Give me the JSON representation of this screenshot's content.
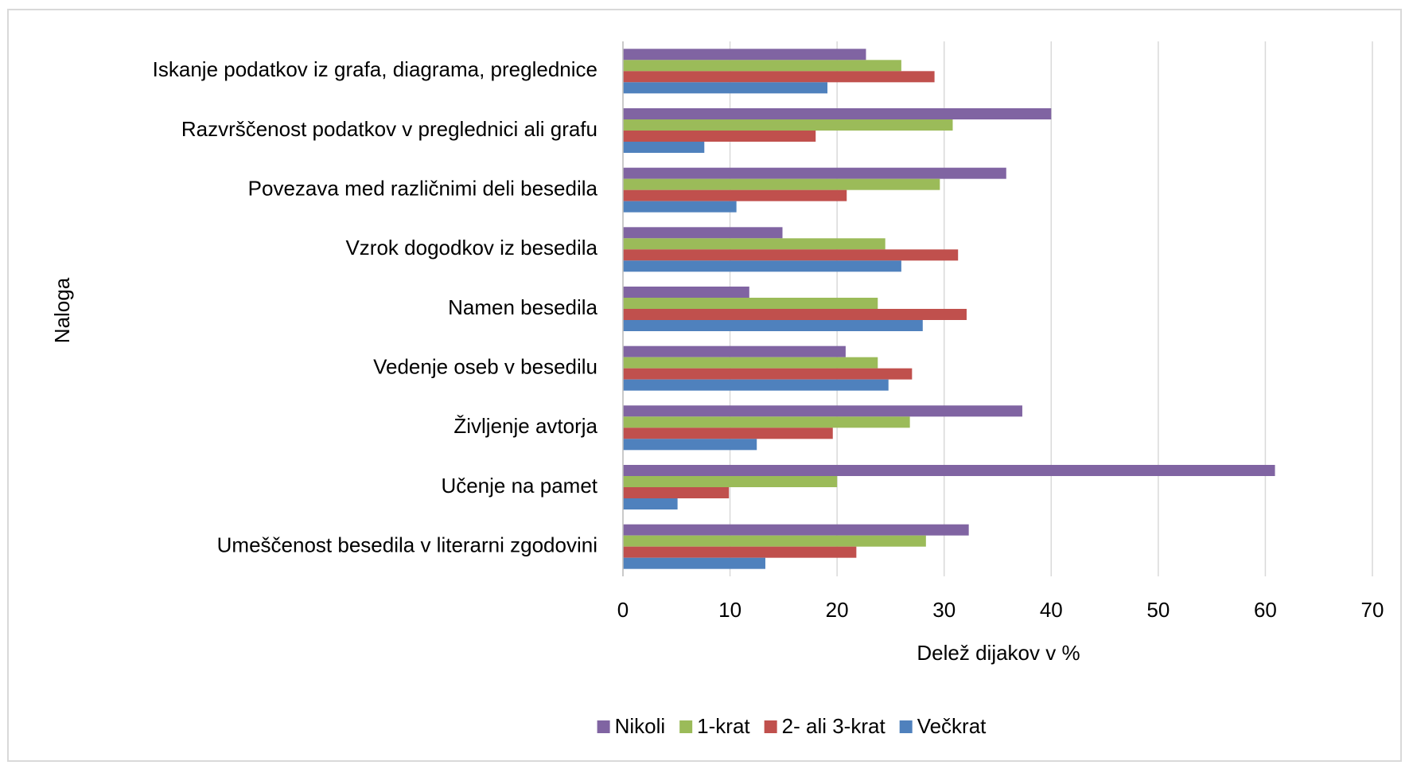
{
  "chart_data": {
    "type": "bar",
    "orientation": "horizontal",
    "x_label": "Delež dijakov v %",
    "y_label": "Naloga",
    "categories": [
      "Iskanje podatkov iz grafa, diagrama, preglednice",
      "Razvrščenost podatkov v preglednici ali grafu",
      "Povezava med različnimi deli besedila",
      "Vzrok dogodkov iz besedila",
      "Namen besedila",
      "Vedenje oseb v besedilu",
      "Življenje avtorja",
      "Učenje na pamet",
      "Umeščenost besedila v literarni zgodovini"
    ],
    "series": [
      {
        "name": "Nikoli",
        "color": "#8064a2",
        "values": [
          22.7,
          40.0,
          35.8,
          14.9,
          11.8,
          20.8,
          37.3,
          60.9,
          32.3
        ]
      },
      {
        "name": "1-krat",
        "color": "#9bbb59",
        "values": [
          26.0,
          30.8,
          29.6,
          24.5,
          23.8,
          23.8,
          26.8,
          20.0,
          28.3
        ]
      },
      {
        "name": "2- ali 3-krat",
        "color": "#c0504d",
        "values": [
          29.1,
          18.0,
          20.9,
          31.3,
          32.1,
          27.0,
          19.6,
          9.9,
          21.8
        ]
      },
      {
        "name": "Večkrat",
        "color": "#4f81bd",
        "values": [
          19.1,
          7.6,
          10.6,
          26.0,
          28.0,
          24.8,
          12.5,
          5.1,
          13.3
        ]
      }
    ],
    "xlim": [
      0,
      70
    ],
    "xticks": [
      0,
      10,
      20,
      30,
      40,
      50,
      60,
      70
    ],
    "grid": true,
    "legend": "bottom"
  }
}
